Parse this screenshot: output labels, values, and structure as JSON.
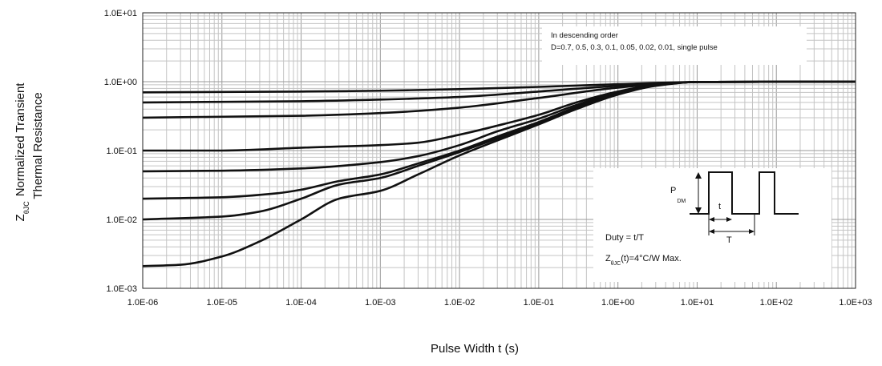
{
  "chart_data": {
    "type": "line",
    "scale": {
      "x": "log",
      "y": "log"
    },
    "xlim": [
      1e-06,
      1000
    ],
    "ylim": [
      0.001,
      10
    ],
    "grid": true,
    "xlabel": "Pulse Width t (s)",
    "ylabel": {
      "symbol": "Z",
      "symbol_sub": "θJC",
      "line1": "Normalized Transient",
      "line2": "Thermal Resistance"
    },
    "x_ticks": [
      {
        "value": 1e-06,
        "label": "1.0E-06"
      },
      {
        "value": 1e-05,
        "label": "1.0E-05"
      },
      {
        "value": 0.0001,
        "label": "1.0E-04"
      },
      {
        "value": 0.001,
        "label": "1.0E-03"
      },
      {
        "value": 0.01,
        "label": "1.0E-02"
      },
      {
        "value": 0.1,
        "label": "1.0E-01"
      },
      {
        "value": 1,
        "label": "1.0E+00"
      },
      {
        "value": 10,
        "label": "1.0E+01"
      },
      {
        "value": 100,
        "label": "1.0E+02"
      },
      {
        "value": 1000,
        "label": "1.0E+03"
      }
    ],
    "y_ticks": [
      {
        "value": 10,
        "label": "1.0E+01"
      },
      {
        "value": 1,
        "label": "1.0E+00"
      },
      {
        "value": 0.1,
        "label": "1.0E-01"
      },
      {
        "value": 0.01,
        "label": "1.0E-02"
      },
      {
        "value": 0.001,
        "label": "1.0E-03"
      }
    ],
    "annotation": {
      "line1": "In descending order",
      "line2": "D=0.7, 0.5, 0.3, 0.1, 0.05, 0.02, 0.01, single pulse"
    },
    "inset": {
      "pdm_main": "P",
      "pdm_sub": "DM",
      "t_label": "t",
      "T_label": "T",
      "duty": "Duty = t/T",
      "z_main": "Z",
      "z_sub": "θJC",
      "z_rest": "(t)=4°C/W Max."
    },
    "series": [
      {
        "x": [
          1e-06,
          1e-05,
          0.0001,
          0.001,
          0.01,
          0.1,
          1,
          10,
          1000
        ],
        "y": [
          0.7,
          0.71,
          0.72,
          0.74,
          0.78,
          0.84,
          0.92,
          0.99,
          1.0
        ]
      },
      {
        "x": [
          1e-06,
          1e-05,
          0.0001,
          0.001,
          0.01,
          0.1,
          1,
          10,
          1000
        ],
        "y": [
          0.5,
          0.51,
          0.52,
          0.55,
          0.6,
          0.72,
          0.87,
          0.99,
          1.0
        ]
      },
      {
        "x": [
          1e-06,
          1e-05,
          0.0001,
          0.001,
          0.01,
          0.1,
          1,
          10,
          1000
        ],
        "y": [
          0.3,
          0.31,
          0.32,
          0.35,
          0.42,
          0.58,
          0.82,
          0.99,
          1.0
        ]
      },
      {
        "x": [
          1e-06,
          1e-05,
          0.0001,
          0.001,
          0.003,
          0.01,
          0.03,
          0.1,
          0.3,
          1,
          3,
          10,
          1000
        ],
        "y": [
          0.1,
          0.1,
          0.11,
          0.12,
          0.13,
          0.17,
          0.23,
          0.33,
          0.5,
          0.72,
          0.9,
          0.99,
          1.0
        ]
      },
      {
        "x": [
          1e-06,
          1e-05,
          0.0001,
          0.001,
          0.003,
          0.01,
          0.03,
          0.1,
          0.3,
          1,
          3,
          10,
          1000
        ],
        "y": [
          0.05,
          0.051,
          0.055,
          0.068,
          0.083,
          0.12,
          0.19,
          0.29,
          0.46,
          0.7,
          0.89,
          0.99,
          1.0
        ]
      },
      {
        "x": [
          1e-06,
          1e-05,
          5e-05,
          0.0001,
          0.0003,
          0.001,
          0.003,
          0.01,
          0.03,
          0.1,
          0.3,
          1,
          3,
          10,
          1000
        ],
        "y": [
          0.02,
          0.021,
          0.024,
          0.027,
          0.036,
          0.045,
          0.065,
          0.1,
          0.16,
          0.26,
          0.43,
          0.68,
          0.89,
          0.99,
          1.0
        ]
      },
      {
        "x": [
          1e-06,
          1e-05,
          3e-05,
          0.0001,
          0.0003,
          0.001,
          0.003,
          0.01,
          0.03,
          0.1,
          0.3,
          1,
          3,
          10,
          1000
        ],
        "y": [
          0.01,
          0.011,
          0.013,
          0.02,
          0.032,
          0.04,
          0.06,
          0.095,
          0.15,
          0.25,
          0.42,
          0.67,
          0.88,
          0.99,
          1.0
        ]
      },
      {
        "x": [
          1e-06,
          3e-06,
          1e-05,
          3e-05,
          0.0001,
          0.0003,
          0.001,
          0.003,
          0.01,
          0.03,
          0.1,
          0.3,
          1,
          3,
          10,
          1000
        ],
        "y": [
          0.0021,
          0.0022,
          0.0029,
          0.0048,
          0.01,
          0.02,
          0.026,
          0.045,
          0.085,
          0.14,
          0.24,
          0.4,
          0.65,
          0.87,
          0.99,
          1.0
        ]
      }
    ]
  }
}
